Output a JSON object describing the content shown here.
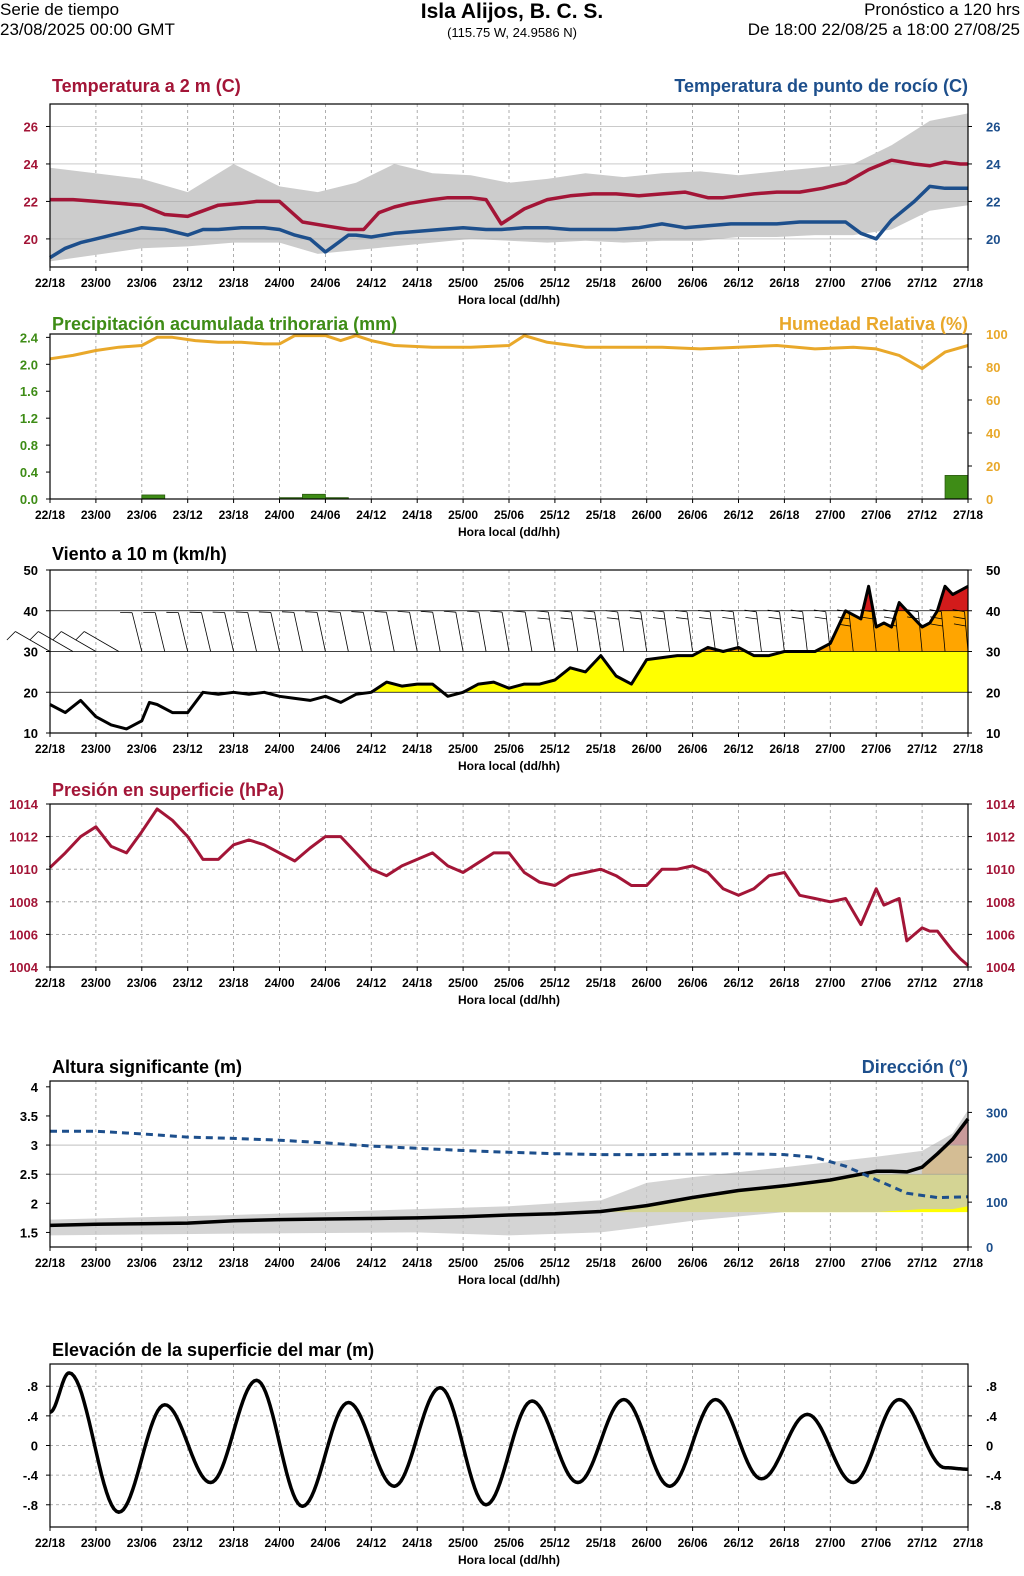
{
  "header": {
    "left_line1": "Serie de tiempo",
    "left_line2": "23/08/2025 00:00 GMT",
    "title": "Isla Alijos, B. C. S.",
    "coords": "(115.75 W, 24.9586 N)",
    "right_line1": "Pronóstico a 120 hrs",
    "right_line2": "De 18:00 22/08/25 a 18:00 27/08/25"
  },
  "colors": {
    "temp": "#a31537",
    "dew": "#1d4f8c",
    "precip": "#3e8c16",
    "rh": "#e9a82a",
    "wind_yellow": "#ffff00",
    "wind_orange": "#ffa500",
    "wind_red": "#d31b1b",
    "band": "#cccccc",
    "wave_yellow": "#ffff00",
    "wave_band": "#c6c6c6",
    "dir": "#1d4f8c"
  },
  "chart_data": [
    {
      "id": "temp",
      "type": "line",
      "title": "Temperatura a 2 m (C)",
      "title_right": "Temperatura de punto de rocío (C)",
      "xlabel": "Hora local (dd/hh)",
      "xticks": [
        "22/18",
        "23/00",
        "23/06",
        "23/12",
        "23/18",
        "24/00",
        "24/06",
        "24/12",
        "24/18",
        "25/00",
        "25/06",
        "25/12",
        "25/18",
        "26/00",
        "26/06",
        "26/12",
        "26/18",
        "27/00",
        "27/06",
        "27/12",
        "27/18"
      ],
      "xrange": [
        0,
        120
      ],
      "ylim": [
        18.5,
        27.2
      ],
      "yticks": [
        20,
        22,
        24,
        26
      ],
      "series": [
        {
          "name": "Temperatura a 2 m",
          "x": [
            0,
            3,
            6,
            9,
            12,
            15,
            18,
            20,
            22,
            25,
            27,
            30,
            33,
            36,
            39,
            41,
            43,
            45,
            47,
            50,
            52,
            55,
            57,
            59,
            62,
            65,
            68,
            71,
            74,
            77,
            80,
            83,
            86,
            88,
            90,
            92,
            95,
            98,
            101,
            104,
            107,
            110,
            113,
            115,
            117,
            119,
            120
          ],
          "values": [
            22.1,
            22.1,
            22.0,
            21.9,
            21.8,
            21.3,
            21.2,
            21.5,
            21.8,
            21.9,
            22.0,
            22.0,
            20.9,
            20.7,
            20.5,
            20.5,
            21.4,
            21.7,
            21.9,
            22.1,
            22.2,
            22.2,
            22.1,
            20.8,
            21.6,
            22.1,
            22.3,
            22.4,
            22.4,
            22.3,
            22.4,
            22.5,
            22.2,
            22.2,
            22.3,
            22.4,
            22.5,
            22.5,
            22.7,
            23.0,
            23.7,
            24.2,
            24.0,
            23.9,
            24.1,
            24.0,
            24.0
          ]
        },
        {
          "name": "Temperatura de punto de rocío",
          "x": [
            0,
            2,
            4,
            6,
            9,
            12,
            15,
            18,
            20,
            22,
            25,
            28,
            30,
            32,
            34,
            36,
            37,
            39,
            40,
            42,
            45,
            48,
            51,
            54,
            57,
            59,
            62,
            65,
            68,
            71,
            74,
            77,
            80,
            83,
            86,
            89,
            92,
            95,
            98,
            101,
            104,
            106,
            108,
            110,
            113,
            115,
            117,
            120
          ],
          "values": [
            19.0,
            19.5,
            19.8,
            20.0,
            20.3,
            20.6,
            20.5,
            20.2,
            20.5,
            20.5,
            20.6,
            20.6,
            20.5,
            20.2,
            20.0,
            19.3,
            19.6,
            20.2,
            20.2,
            20.1,
            20.3,
            20.4,
            20.5,
            20.6,
            20.5,
            20.5,
            20.6,
            20.6,
            20.5,
            20.5,
            20.5,
            20.6,
            20.8,
            20.6,
            20.7,
            20.8,
            20.8,
            20.8,
            20.9,
            20.9,
            20.9,
            20.3,
            20.0,
            21.0,
            22.0,
            22.8,
            22.7,
            22.7
          ]
        }
      ],
      "band_x": [
        0,
        12,
        18,
        24,
        30,
        35,
        40,
        45,
        50,
        55,
        60,
        65,
        70,
        75,
        80,
        85,
        90,
        95,
        100,
        105,
        110,
        115,
        120
      ],
      "band_upper": [
        23.8,
        23.2,
        22.5,
        24.0,
        22.8,
        22.5,
        23.0,
        24.0,
        23.5,
        23.4,
        23.0,
        23.2,
        23.5,
        23.3,
        23.5,
        23.6,
        23.4,
        23.6,
        23.8,
        24.0,
        25.0,
        26.3,
        26.7
      ],
      "band_lower": [
        18.8,
        19.5,
        19.6,
        19.8,
        19.8,
        19.2,
        19.4,
        19.6,
        19.8,
        20.0,
        19.9,
        19.8,
        19.9,
        19.8,
        19.9,
        19.9,
        20.1,
        20.1,
        20.2,
        20.2,
        20.5,
        21.5,
        21.8
      ]
    },
    {
      "id": "precip",
      "type": "bar",
      "title": "Precipitación acumulada trihoraria (mm)",
      "title_right": "Humedad Relativa (%)",
      "xlabel": "Hora local (dd/hh)",
      "xticks": [
        "22/18",
        "23/00",
        "23/06",
        "23/12",
        "23/18",
        "24/00",
        "24/06",
        "24/12",
        "24/18",
        "25/00",
        "25/06",
        "25/12",
        "25/18",
        "26/00",
        "26/06",
        "26/12",
        "26/18",
        "27/00",
        "27/06",
        "27/12",
        "27/18"
      ],
      "xrange": [
        0,
        120
      ],
      "ylim": [
        0,
        2.45
      ],
      "yticks": [
        "0.0",
        "0.4",
        "0.8",
        "1.2",
        "1.6",
        "2.0",
        "2.4"
      ],
      "y2lim": [
        0,
        100
      ],
      "y2ticks": [
        0,
        20,
        40,
        60,
        80,
        100
      ],
      "bars": {
        "x_start": [
          12,
          30,
          33,
          36,
          117
        ],
        "x_end": [
          15,
          33,
          36,
          39,
          120
        ],
        "values": [
          0.06,
          0.02,
          0.07,
          0.02,
          0.35
        ]
      },
      "rh": {
        "name": "Humedad Relativa",
        "x": [
          0,
          3,
          6,
          9,
          12,
          14,
          16,
          19,
          22,
          25,
          28,
          30,
          32,
          36,
          38,
          40,
          42,
          45,
          50,
          55,
          60,
          62,
          65,
          70,
          75,
          80,
          85,
          90,
          95,
          100,
          105,
          108,
          111,
          114,
          117,
          120
        ],
        "values": [
          85,
          87,
          90,
          92,
          93,
          98,
          98,
          96,
          95,
          95,
          94,
          94,
          99,
          99,
          96,
          99,
          96,
          93,
          92,
          92,
          93,
          99,
          95,
          92,
          92,
          92,
          91,
          92,
          93,
          91,
          92,
          91,
          87,
          79,
          89,
          93
        ]
      }
    },
    {
      "id": "wind",
      "type": "area",
      "title": "Viento a 10 m (km/h)",
      "xlabel": "Hora local (dd/hh)",
      "xticks": [
        "22/18",
        "23/00",
        "23/06",
        "23/12",
        "23/18",
        "24/00",
        "24/06",
        "24/12",
        "24/18",
        "25/00",
        "25/06",
        "25/12",
        "25/18",
        "26/00",
        "26/06",
        "26/12",
        "26/18",
        "27/00",
        "27/06",
        "27/12",
        "27/18"
      ],
      "xrange": [
        0,
        120
      ],
      "ylim": [
        10,
        50
      ],
      "yticks": [
        10,
        20,
        30,
        40,
        50
      ],
      "thresholds": [
        20,
        30,
        40
      ],
      "series": [
        {
          "name": "Viento",
          "x": [
            0,
            2,
            4,
            6,
            8,
            10,
            12,
            13,
            14,
            16,
            18,
            20,
            22,
            24,
            26,
            28,
            30,
            32,
            34,
            36,
            38,
            40,
            42,
            44,
            46,
            48,
            50,
            52,
            54,
            56,
            58,
            60,
            62,
            64,
            66,
            68,
            70,
            72,
            74,
            76,
            78,
            80,
            82,
            84,
            86,
            88,
            90,
            92,
            94,
            96,
            98,
            100,
            102,
            104,
            106,
            107,
            108,
            109,
            110,
            111,
            112,
            113,
            114,
            115,
            116,
            117,
            118,
            119,
            120
          ],
          "values": [
            17,
            15,
            18,
            14,
            12,
            11,
            13,
            17.5,
            17,
            15,
            15,
            20,
            19.5,
            20,
            19.5,
            20,
            19,
            18.5,
            18,
            19,
            17.5,
            19.5,
            20,
            22.5,
            21.5,
            22,
            22,
            19,
            20,
            22,
            22.5,
            21,
            22,
            22,
            23,
            26,
            25,
            29,
            24,
            22,
            28,
            28.5,
            29,
            29,
            31,
            30,
            31,
            29,
            29,
            30,
            30,
            30,
            32,
            40,
            38,
            46,
            36,
            37,
            36,
            42,
            40,
            38,
            36,
            37,
            40,
            46,
            44,
            45,
            46
          ]
        }
      ],
      "barbs_note": "barbas de viento"
    },
    {
      "id": "pressure",
      "type": "line",
      "title": "Presión en superficie (hPa)",
      "xlabel": "Hora local (dd/hh)",
      "xticks": [
        "22/18",
        "23/00",
        "23/06",
        "23/12",
        "23/18",
        "24/00",
        "24/06",
        "24/12",
        "24/18",
        "25/00",
        "25/06",
        "25/12",
        "25/18",
        "26/00",
        "26/06",
        "26/12",
        "26/18",
        "27/00",
        "27/06",
        "27/12",
        "27/18"
      ],
      "xrange": [
        0,
        120
      ],
      "ylim": [
        1004,
        1014
      ],
      "yticks": [
        1004,
        1006,
        1008,
        1010,
        1012,
        1014
      ],
      "series": [
        {
          "name": "Presión",
          "x": [
            0,
            2,
            4,
            6,
            8,
            10,
            12,
            14,
            16,
            18,
            20,
            22,
            24,
            26,
            28,
            30,
            32,
            34,
            36,
            38,
            40,
            42,
            44,
            46,
            48,
            50,
            52,
            54,
            56,
            58,
            60,
            62,
            64,
            66,
            68,
            70,
            72,
            74,
            76,
            78,
            80,
            82,
            84,
            86,
            88,
            90,
            92,
            94,
            96,
            98,
            100,
            102,
            104,
            106,
            108,
            109,
            110,
            111,
            112,
            113,
            114,
            115,
            116,
            117,
            118,
            119,
            120
          ],
          "values": [
            1010.1,
            1011.0,
            1012.0,
            1012.6,
            1011.4,
            1011.0,
            1012.3,
            1013.7,
            1013.0,
            1012.0,
            1010.6,
            1010.6,
            1011.5,
            1011.8,
            1011.5,
            1011.0,
            1010.5,
            1011.3,
            1012.0,
            1012.0,
            1011.0,
            1010.0,
            1009.6,
            1010.2,
            1010.6,
            1011.0,
            1010.2,
            1009.8,
            1010.4,
            1011.0,
            1011.0,
            1009.8,
            1009.2,
            1009.0,
            1009.6,
            1009.8,
            1010.0,
            1009.6,
            1009.0,
            1009.0,
            1010.0,
            1010.0,
            1010.2,
            1009.8,
            1008.8,
            1008.4,
            1008.8,
            1009.6,
            1009.8,
            1008.4,
            1008.2,
            1008.0,
            1008.2,
            1006.6,
            1008.8,
            1007.8,
            1008.0,
            1008.2,
            1005.6,
            1006.0,
            1006.4,
            1006.2,
            1006.2,
            1005.6,
            1005.0,
            1004.5,
            1004.1
          ]
        }
      ]
    },
    {
      "id": "waves",
      "type": "line",
      "title": "Altura significante (m)",
      "title_right": "Dirección (°)",
      "xlabel": "Hora local (dd/hh)",
      "xticks": [
        "22/18",
        "23/00",
        "23/06",
        "23/12",
        "23/18",
        "24/00",
        "24/06",
        "24/12",
        "24/18",
        "25/00",
        "25/06",
        "25/12",
        "25/18",
        "26/00",
        "26/06",
        "26/12",
        "26/18",
        "27/00",
        "27/06",
        "27/12",
        "27/18"
      ],
      "xrange": [
        0,
        120
      ],
      "ylim": [
        1.25,
        4.1
      ],
      "yticks": [
        1.5,
        2,
        2.5,
        3,
        3.5,
        4
      ],
      "y2lim": [
        0,
        370
      ],
      "y2ticks": [
        0,
        100,
        200,
        300
      ],
      "series": [
        {
          "name": "Altura significante",
          "x": [
            0,
            6,
            12,
            18,
            24,
            30,
            36,
            42,
            48,
            54,
            60,
            66,
            72,
            78,
            84,
            90,
            96,
            102,
            108,
            110,
            112,
            114,
            116,
            118,
            120
          ],
          "values": [
            1.62,
            1.64,
            1.65,
            1.66,
            1.7,
            1.72,
            1.73,
            1.74,
            1.75,
            1.77,
            1.8,
            1.82,
            1.86,
            1.96,
            2.1,
            2.22,
            2.3,
            2.4,
            2.55,
            2.55,
            2.54,
            2.62,
            2.85,
            3.1,
            3.45
          ]
        },
        {
          "name": "Dirección",
          "x": [
            0,
            6,
            12,
            18,
            24,
            30,
            36,
            42,
            48,
            54,
            60,
            66,
            72,
            78,
            84,
            90,
            96,
            100,
            104,
            108,
            112,
            116,
            120
          ],
          "values": [
            258,
            258,
            252,
            245,
            242,
            238,
            232,
            225,
            220,
            215,
            211,
            208,
            206,
            206,
            207,
            208,
            206,
            200,
            180,
            150,
            120,
            110,
            112
          ]
        }
      ],
      "band_x": [
        0,
        24,
        48,
        60,
        72,
        78,
        84,
        96,
        108,
        114,
        118,
        120
      ],
      "band_upper": [
        1.72,
        1.8,
        1.9,
        1.95,
        2.05,
        2.35,
        2.45,
        2.62,
        2.8,
        2.9,
        3.2,
        3.6
      ],
      "band_lower": [
        1.45,
        1.48,
        1.5,
        1.45,
        1.5,
        1.6,
        1.7,
        1.85,
        1.85,
        1.9,
        1.9,
        1.95
      ]
    },
    {
      "id": "sea",
      "type": "line",
      "title": "Elevación de la superficie del mar (m)",
      "xlabel": "Hora local (dd/hh)",
      "xticks": [
        "22/18",
        "23/00",
        "23/06",
        "23/12",
        "23/18",
        "24/00",
        "24/06",
        "24/12",
        "24/18",
        "25/00",
        "25/06",
        "25/12",
        "25/18",
        "26/00",
        "26/06",
        "26/12",
        "26/18",
        "27/00",
        "27/06",
        "27/12",
        "27/18"
      ],
      "xrange": [
        0,
        120
      ],
      "ylim": [
        -1.1,
        1.1
      ],
      "yticks": [
        "-.8",
        "-.4",
        "0",
        ".4",
        ".8"
      ],
      "ytick_values": [
        -0.8,
        -0.4,
        0,
        0.4,
        0.8
      ],
      "series": [
        {
          "name": "Elevación",
          "x": [
            0,
            2.5,
            9,
            15,
            21,
            27,
            33,
            39,
            45,
            51,
            57,
            63,
            69,
            75,
            81,
            87,
            93,
            99,
            105,
            111,
            117,
            120
          ],
          "values": [
            0.45,
            0.98,
            -0.9,
            0.55,
            -0.5,
            0.88,
            -0.82,
            0.58,
            -0.55,
            0.78,
            -0.8,
            0.6,
            -0.5,
            0.62,
            -0.55,
            0.62,
            -0.45,
            0.42,
            -0.5,
            0.62,
            -0.3,
            -0.32
          ]
        }
      ]
    }
  ]
}
